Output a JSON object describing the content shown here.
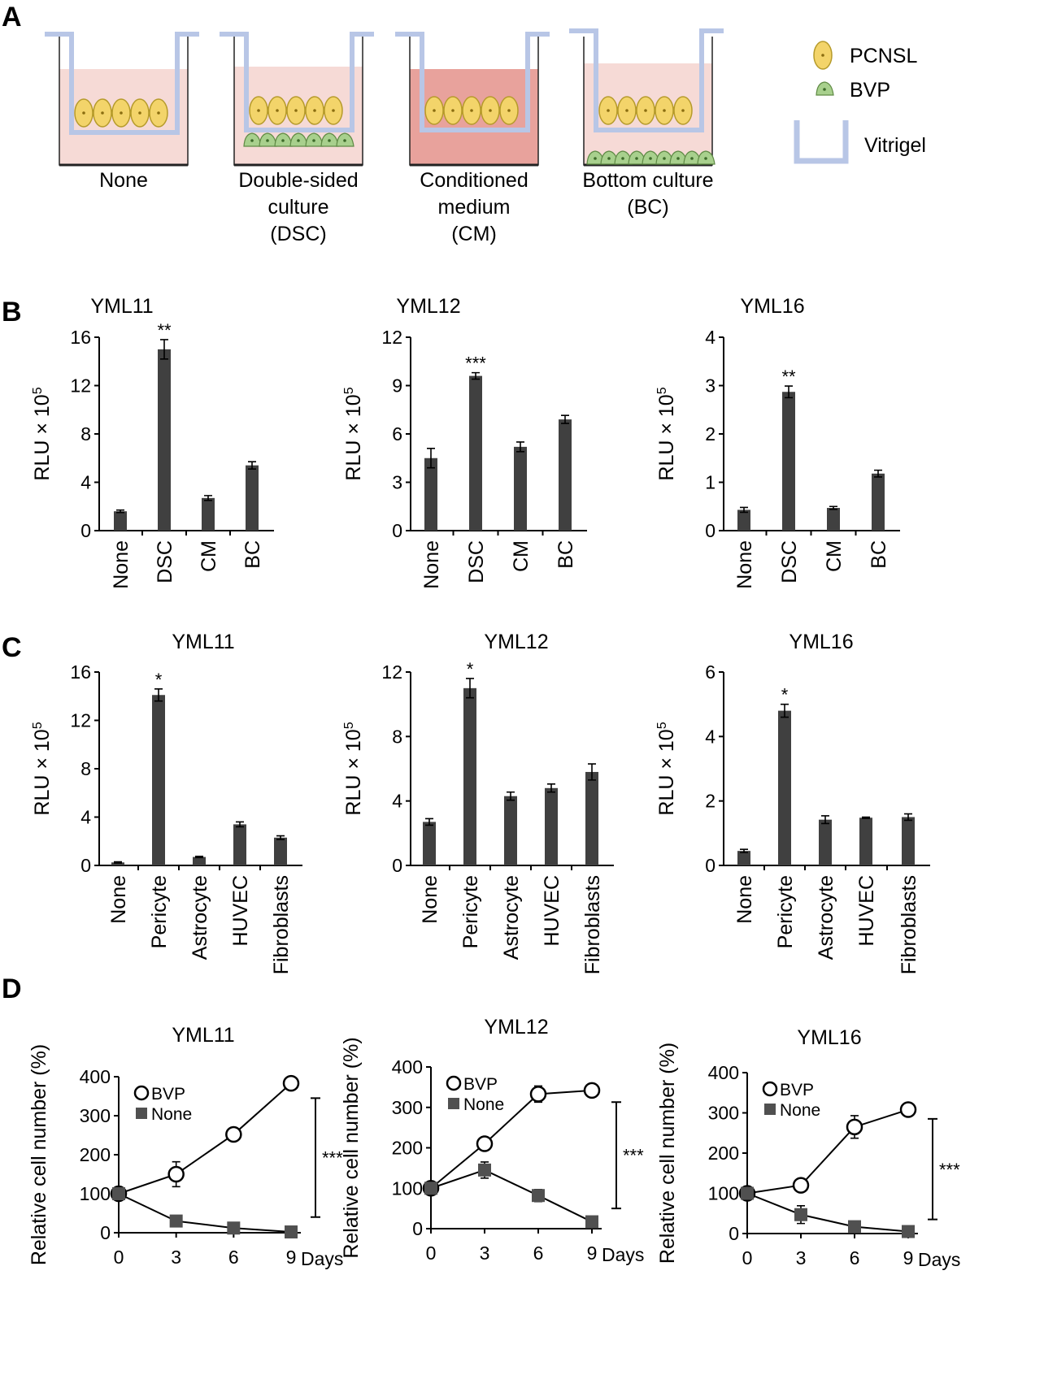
{
  "panels": {
    "a": "A",
    "b": "B",
    "c": "C",
    "d": "D"
  },
  "diagram": {
    "wells": [
      {
        "lines": [
          "None"
        ]
      },
      {
        "lines": [
          "Double-sided",
          "culture",
          "(DSC)"
        ]
      },
      {
        "lines": [
          "Conditioned",
          "medium",
          "(CM)"
        ]
      },
      {
        "lines": [
          "Bottom culture",
          "(BC)"
        ]
      }
    ],
    "legend": {
      "pcnsl": "PCNSL",
      "bvp": "BVP",
      "vitrigel": "Vitrigel"
    },
    "colors": {
      "medium": "#f6dad6",
      "conditioned": "#e8a29c",
      "vitrigel": "#b8c6e6",
      "pcnsl": "#f3d46a",
      "bvp": "#a8d08d",
      "bar": "#404040"
    }
  },
  "chart_data": [
    {
      "panel": "B",
      "type": "bar",
      "title": "YML11",
      "ylabel": "RLU × 10",
      "ylabel_sup": "5",
      "ylim": [
        0,
        16
      ],
      "yticks": [
        "0",
        "4",
        "8",
        "12",
        "16"
      ],
      "categories": [
        "None",
        "DSC",
        "CM",
        "BC"
      ],
      "values": [
        1.6,
        15.0,
        2.7,
        5.4
      ],
      "errors": [
        0.1,
        0.8,
        0.2,
        0.3
      ],
      "annotations": [
        "",
        "**",
        "",
        ""
      ]
    },
    {
      "panel": "B",
      "type": "bar",
      "title": "YML12",
      "ylabel": "RLU × 10",
      "ylabel_sup": "5",
      "ylim": [
        0,
        12
      ],
      "yticks": [
        "0",
        "3",
        "6",
        "9",
        "12"
      ],
      "categories": [
        "None",
        "DSC",
        "CM",
        "BC"
      ],
      "values": [
        4.5,
        9.6,
        5.2,
        6.9
      ],
      "errors": [
        0.6,
        0.2,
        0.3,
        0.25
      ],
      "annotations": [
        "",
        "***",
        "",
        ""
      ]
    },
    {
      "panel": "B",
      "type": "bar",
      "title": "YML16",
      "ylabel": "RLU × 10",
      "ylabel_sup": "5",
      "ylim": [
        0,
        4
      ],
      "yticks": [
        "0",
        "1",
        "2",
        "3",
        "4"
      ],
      "categories": [
        "None",
        "DSC",
        "CM",
        "BC"
      ],
      "values": [
        0.43,
        2.87,
        0.47,
        1.18
      ],
      "errors": [
        0.05,
        0.12,
        0.03,
        0.07
      ],
      "annotations": [
        "",
        "**",
        "",
        ""
      ]
    },
    {
      "panel": "C",
      "type": "bar",
      "title": "YML11",
      "ylabel": "RLU × 10",
      "ylabel_sup": "5",
      "ylim": [
        0,
        16
      ],
      "yticks": [
        "0",
        "4",
        "8",
        "12",
        "16"
      ],
      "categories": [
        "None",
        "Pericyte",
        "Astrocyte",
        "HUVEC",
        "Fibroblasts"
      ],
      "values": [
        0.25,
        14.1,
        0.7,
        3.4,
        2.3
      ],
      "errors": [
        0.05,
        0.5,
        0.05,
        0.2,
        0.15
      ],
      "annotations": [
        "",
        "*",
        "",
        "",
        ""
      ]
    },
    {
      "panel": "C",
      "type": "bar",
      "title": "YML12",
      "ylabel": "RLU × 10",
      "ylabel_sup": "5",
      "ylim": [
        0,
        12
      ],
      "yticks": [
        "0",
        "4",
        "8",
        "12"
      ],
      "categories": [
        "None",
        "Pericyte",
        "Astrocyte",
        "HUVEC",
        "Fibroblasts"
      ],
      "values": [
        2.7,
        11.0,
        4.3,
        4.8,
        5.8
      ],
      "errors": [
        0.2,
        0.6,
        0.25,
        0.25,
        0.5
      ],
      "annotations": [
        "",
        "*",
        "",
        "",
        ""
      ]
    },
    {
      "panel": "C",
      "type": "bar",
      "title": "YML16",
      "ylabel": "RLU × 10",
      "ylabel_sup": "5",
      "ylim": [
        0,
        6
      ],
      "yticks": [
        "0",
        "2",
        "4",
        "6"
      ],
      "categories": [
        "None",
        "Pericyte",
        "Astrocyte",
        "HUVEC",
        "Fibroblasts"
      ],
      "values": [
        0.45,
        4.8,
        1.42,
        1.48,
        1.5
      ],
      "errors": [
        0.05,
        0.2,
        0.12,
        0.02,
        0.1
      ],
      "annotations": [
        "",
        "*",
        "",
        "",
        ""
      ]
    },
    {
      "panel": "D",
      "type": "line",
      "title": "YML11",
      "ylabel": "Relative cell number (%)",
      "xlabel": "Days",
      "ylim": [
        0,
        400
      ],
      "yticks": [
        "0",
        "100",
        "200",
        "300",
        "400"
      ],
      "x": [
        0,
        3,
        6,
        9
      ],
      "xticks": [
        "0",
        "3",
        "6",
        "9"
      ],
      "series": [
        {
          "name": "BVP",
          "marker": "open-circle",
          "values": [
            100,
            150,
            252,
            383
          ],
          "errors": [
            0,
            32,
            15,
            10
          ]
        },
        {
          "name": "None",
          "marker": "filled-square",
          "values": [
            100,
            30,
            12,
            2
          ],
          "errors": [
            0,
            5,
            5,
            2
          ]
        }
      ],
      "significance": {
        "label": "***",
        "range": [
          40,
          345
        ]
      }
    },
    {
      "panel": "D",
      "type": "line",
      "title": "YML12",
      "ylabel": "Relative cell number (%)",
      "xlabel": "Days",
      "ylim": [
        0,
        400
      ],
      "yticks": [
        "0",
        "100",
        "200",
        "300",
        "400"
      ],
      "x": [
        0,
        3,
        6,
        9
      ],
      "xticks": [
        "0",
        "3",
        "6",
        "9"
      ],
      "series": [
        {
          "name": "BVP",
          "marker": "open-circle",
          "values": [
            100,
            210,
            333,
            342
          ],
          "errors": [
            0,
            5,
            20,
            5
          ]
        },
        {
          "name": "None",
          "marker": "filled-square",
          "values": [
            100,
            145,
            82,
            17
          ],
          "errors": [
            0,
            20,
            15,
            5
          ]
        }
      ],
      "significance": {
        "label": "***",
        "range": [
          50,
          313
        ]
      }
    },
    {
      "panel": "D",
      "type": "line",
      "title": "YML16",
      "ylabel": "Relative cell number (%)",
      "xlabel": "Days",
      "ylim": [
        0,
        400
      ],
      "yticks": [
        "0",
        "100",
        "200",
        "300",
        "400"
      ],
      "x": [
        0,
        3,
        6,
        9
      ],
      "xticks": [
        "0",
        "3",
        "6",
        "9"
      ],
      "series": [
        {
          "name": "BVP",
          "marker": "open-circle",
          "values": [
            100,
            120,
            265,
            308
          ],
          "errors": [
            0,
            5,
            28,
            15
          ]
        },
        {
          "name": "None",
          "marker": "filled-square",
          "values": [
            100,
            47,
            17,
            5
          ],
          "errors": [
            0,
            22,
            5,
            3
          ]
        }
      ],
      "significance": {
        "label": "***",
        "range": [
          35,
          285
        ]
      }
    }
  ]
}
